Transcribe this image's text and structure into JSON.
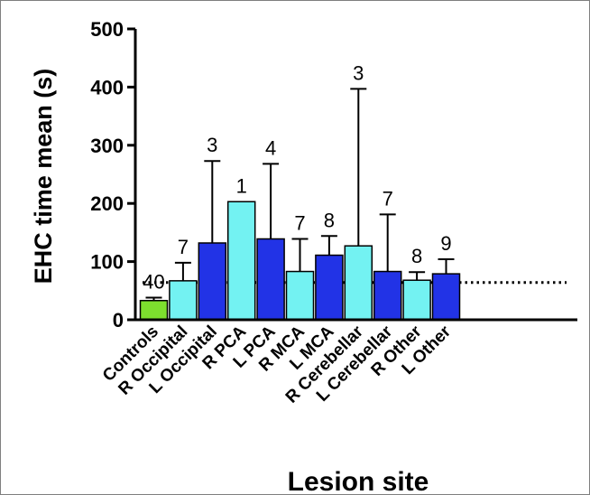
{
  "chart_data": {
    "type": "bar",
    "title": "",
    "xlabel": "Lesion site",
    "ylabel": "EHC time mean (s)",
    "ylim": [
      0,
      500
    ],
    "yticks": [
      0,
      100,
      200,
      300,
      400,
      500
    ],
    "grid": false,
    "legend": "none",
    "categories": [
      "Controls",
      "R Occipital",
      "L Occipital",
      "R PCA",
      "L PCA",
      "R MCA",
      "L MCA",
      "R Cerebellar",
      "L Cerebellar",
      "R Other",
      "L Other"
    ],
    "values": [
      33,
      67,
      132,
      203,
      139,
      83,
      111,
      127,
      83,
      68,
      79
    ],
    "error_upper": [
      38,
      98,
      273,
      203,
      268,
      139,
      144,
      397,
      181,
      82,
      104
    ],
    "n_labels": [
      "40",
      "7",
      "3",
      "1",
      "4",
      "7",
      "8",
      "3",
      "7",
      "8",
      "9"
    ],
    "reference_line": 64,
    "colors": {
      "controls": "#7ddf2e",
      "right": "#73f2f2",
      "left": "#2233e6",
      "outline": "#000000",
      "reference_line": "#000000"
    },
    "bar_colors": [
      "#7ddf2e",
      "#73f2f2",
      "#2233e6",
      "#73f2f2",
      "#2233e6",
      "#73f2f2",
      "#2233e6",
      "#73f2f2",
      "#2233e6",
      "#73f2f2",
      "#2233e6"
    ]
  }
}
